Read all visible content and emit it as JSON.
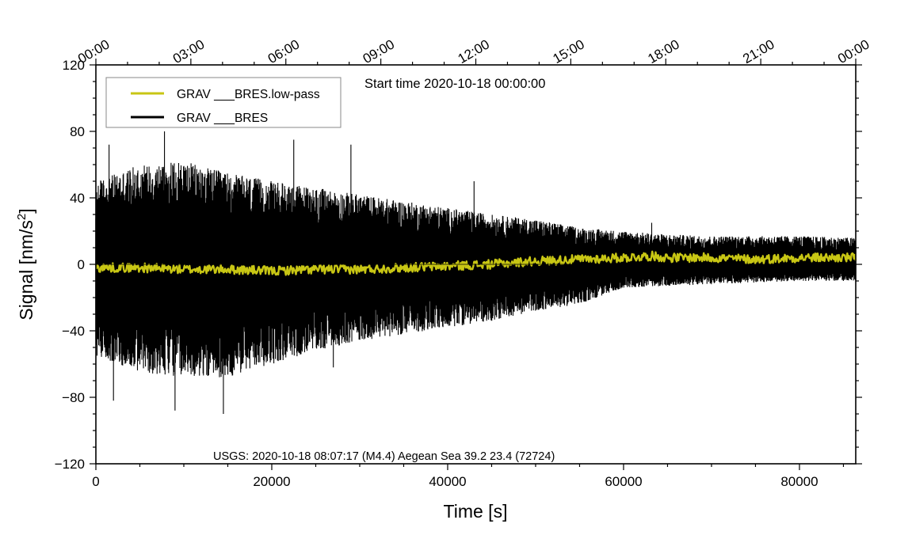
{
  "chart_data": {
    "type": "line",
    "xlabel": "Time [s]",
    "ylabel_main": "Signal [nm/s",
    "ylabel_sup": "2",
    "ylabel_close": "]",
    "xlim": [
      0,
      86400
    ],
    "ylim": [
      -120,
      120
    ],
    "x_ticks": [
      0,
      20000,
      40000,
      60000,
      80000
    ],
    "x_tick_labels": [
      "0",
      "20000",
      "40000",
      "60000",
      "80000"
    ],
    "y_ticks": [
      -120,
      -80,
      -40,
      0,
      40,
      80,
      120
    ],
    "y_tick_labels": [
      "−120",
      "−80",
      "−40",
      "0",
      "40",
      "80",
      "120"
    ],
    "top_ticks": [
      0,
      10800,
      21600,
      32400,
      43200,
      54000,
      64800,
      75600,
      86400
    ],
    "top_tick_labels": [
      "00:00",
      "03:00",
      "06:00",
      "09:00",
      "12:00",
      "15:00",
      "18:00",
      "21:00",
      "00:00"
    ],
    "start_time_label": "Start time 2020-10-18 00:00:00",
    "event_label": "USGS: 2020-10-18 08:07:17 (M4.4) Aegean Sea 39.2 23.4 (72724)",
    "legend": [
      "GRAV ___BRES.low-pass",
      "GRAV ___BRES"
    ],
    "colors": {
      "raw": "#000000",
      "lowpass": "#c8c614",
      "frame": "#000000",
      "legend_border": "#888888"
    },
    "series": [
      {
        "name": "GRAV ___BRES",
        "x": [
          0,
          5000,
          10000,
          15000,
          20000,
          25000,
          30000,
          35000,
          40000,
          45000,
          50000,
          55000,
          60000,
          65000,
          70000,
          75000,
          80000,
          86400
        ],
        "envelope_upper": [
          50,
          60,
          62,
          55,
          50,
          46,
          42,
          38,
          34,
          30,
          27,
          22,
          20,
          18,
          17,
          17,
          17,
          16
        ],
        "envelope_lower": [
          -55,
          -65,
          -68,
          -68,
          -60,
          -52,
          -46,
          -42,
          -38,
          -34,
          -28,
          -24,
          -14,
          -13,
          -12,
          -11,
          -10,
          -10
        ],
        "peaks": [
          {
            "x": 7800,
            "y": 80
          },
          {
            "x": 14500,
            "y": -90
          },
          {
            "x": 9000,
            "y": -88
          },
          {
            "x": 1500,
            "y": 72
          },
          {
            "x": 22500,
            "y": 75
          },
          {
            "x": 27000,
            "y": -62
          },
          {
            "x": 29000,
            "y": 72
          },
          {
            "x": 43000,
            "y": 50
          },
          {
            "x": 63200,
            "y": 25
          },
          {
            "x": 2000,
            "y": -82
          }
        ]
      },
      {
        "name": "GRAV ___BRES.low-pass",
        "x": [
          0,
          5000,
          10000,
          15000,
          20000,
          25000,
          30000,
          35000,
          40000,
          45000,
          50000,
          55000,
          60000,
          63200,
          65000,
          70000,
          75000,
          80000,
          86400
        ],
        "values": [
          -2,
          -2,
          -3,
          -3,
          -4,
          -3,
          -3,
          -2,
          -1,
          0,
          2,
          3,
          4,
          5,
          4,
          4,
          3,
          4,
          4
        ]
      }
    ]
  }
}
